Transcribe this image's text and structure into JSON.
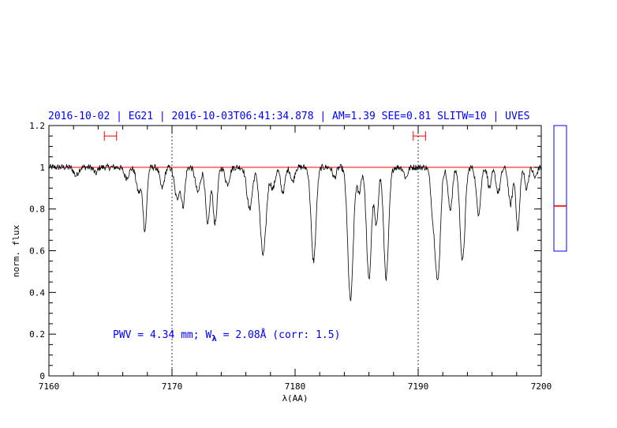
{
  "chart_data": {
    "type": "line",
    "title": "2016-10-02 | EG21 | 2016-10-03T06:41:34.878 | AM=1.39 SEE=0.81 SLITW=10 | UVES",
    "xlabel": "λ(AA)",
    "ylabel": "norm. flux",
    "xlim": [
      7160,
      7200
    ],
    "ylim": [
      0,
      1.2
    ],
    "x_ticks": [
      "7160",
      "7170",
      "7180",
      "7190",
      "7200"
    ],
    "y_ticks": [
      "0",
      "0.2",
      "0.4",
      "0.6",
      "0.8",
      "1",
      "1.2"
    ],
    "grid": false,
    "annotation": {
      "pwv": "PWV = 4.34 mm; W",
      "subscript": "λ",
      "rest": " = 2.08Å (corr: 1.5)"
    },
    "reference_lines_x": [
      7170,
      7190
    ],
    "continuum_level": 1.0,
    "continuum_windows": [
      [
        7164.5,
        7165.5
      ],
      [
        7189.6,
        7190.6
      ]
    ],
    "continuum_window_y": 1.15,
    "absorption_lines": [
      {
        "center": 7162.2,
        "depth": 0.04,
        "width": 0.18
      },
      {
        "center": 7163.8,
        "depth": 0.03,
        "width": 0.15
      },
      {
        "center": 7166.3,
        "depth": 0.05,
        "width": 0.2
      },
      {
        "center": 7167.3,
        "depth": 0.12,
        "width": 0.2
      },
      {
        "center": 7167.8,
        "depth": 0.3,
        "width": 0.15
      },
      {
        "center": 7169.2,
        "depth": 0.1,
        "width": 0.18
      },
      {
        "center": 7170.4,
        "depth": 0.15,
        "width": 0.2
      },
      {
        "center": 7170.9,
        "depth": 0.18,
        "width": 0.15
      },
      {
        "center": 7172.1,
        "depth": 0.12,
        "width": 0.2
      },
      {
        "center": 7172.9,
        "depth": 0.28,
        "width": 0.17
      },
      {
        "center": 7173.5,
        "depth": 0.27,
        "width": 0.17
      },
      {
        "center": 7174.5,
        "depth": 0.08,
        "width": 0.18
      },
      {
        "center": 7176.3,
        "depth": 0.2,
        "width": 0.22
      },
      {
        "center": 7177.4,
        "depth": 0.42,
        "width": 0.25
      },
      {
        "center": 7178.2,
        "depth": 0.1,
        "width": 0.18
      },
      {
        "center": 7179.0,
        "depth": 0.12,
        "width": 0.18
      },
      {
        "center": 7179.8,
        "depth": 0.07,
        "width": 0.15
      },
      {
        "center": 7181.5,
        "depth": 0.45,
        "width": 0.2
      },
      {
        "center": 7183.2,
        "depth": 0.05,
        "width": 0.15
      },
      {
        "center": 7184.5,
        "depth": 0.64,
        "width": 0.22
      },
      {
        "center": 7185.2,
        "depth": 0.12,
        "width": 0.15
      },
      {
        "center": 7186.0,
        "depth": 0.54,
        "width": 0.2
      },
      {
        "center": 7186.6,
        "depth": 0.28,
        "width": 0.15
      },
      {
        "center": 7187.4,
        "depth": 0.53,
        "width": 0.2
      },
      {
        "center": 7189.0,
        "depth": 0.05,
        "width": 0.15
      },
      {
        "center": 7191.2,
        "depth": 0.2,
        "width": 0.18
      },
      {
        "center": 7191.6,
        "depth": 0.53,
        "width": 0.2
      },
      {
        "center": 7192.6,
        "depth": 0.2,
        "width": 0.18
      },
      {
        "center": 7193.6,
        "depth": 0.45,
        "width": 0.2
      },
      {
        "center": 7194.9,
        "depth": 0.22,
        "width": 0.18
      },
      {
        "center": 7195.8,
        "depth": 0.1,
        "width": 0.15
      },
      {
        "center": 7196.5,
        "depth": 0.12,
        "width": 0.18
      },
      {
        "center": 7197.5,
        "depth": 0.18,
        "width": 0.17
      },
      {
        "center": 7198.1,
        "depth": 0.3,
        "width": 0.15
      },
      {
        "center": 7198.8,
        "depth": 0.1,
        "width": 0.15
      },
      {
        "center": 7199.5,
        "depth": 0.05,
        "width": 0.15
      }
    ],
    "side_panel": {
      "ylim": [
        0,
        1.2
      ],
      "marker_values": [
        0.78,
        0.79
      ]
    }
  },
  "colors": {
    "spectrum": "#000000",
    "continuum": "#ff0000",
    "title": "#0000ff",
    "annotation": "#0000ff",
    "reference_lines": "#000000",
    "side_panel_border": "#0000ff",
    "side_panel_marker": "#ff0000"
  }
}
